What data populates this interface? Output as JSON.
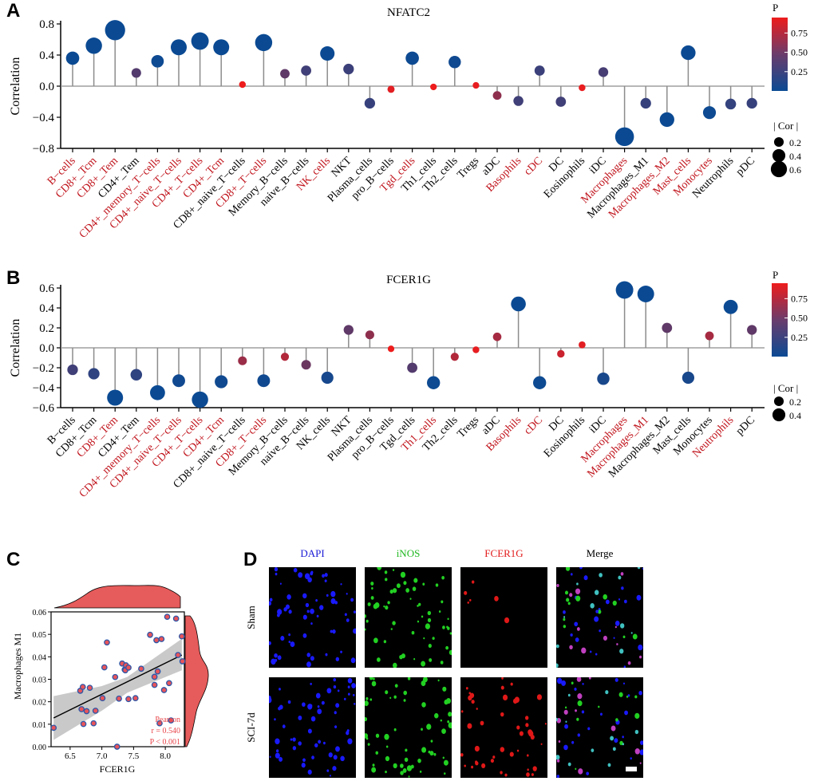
{
  "panels": {
    "a": {
      "letter": "A"
    },
    "b": {
      "letter": "B"
    },
    "c": {
      "letter": "C"
    },
    "d": {
      "letter": "D"
    }
  },
  "colors": {
    "p_low": "#0b4a93",
    "p_high": "#ee1c1c",
    "label_significant": "#c0131b",
    "label_normal": "#000000",
    "stem": "#8c8c8c",
    "density_fill": "#e65b5b",
    "ci_band": "#bfbfbf",
    "point_fill": "#e8545a",
    "point_edge": "#2d57a8",
    "annotation": "#e8454a",
    "dapi": "#1a1ad6",
    "inos": "#1fb81f",
    "fcer1g": "#e31a1a"
  },
  "chart_data": [
    {
      "id": "A",
      "type": "lollipop",
      "title": "NFATC2",
      "xlabel": "",
      "ylabel": "Correlation",
      "ylim": [
        -0.8,
        0.8
      ],
      "yticks": [
        "0.8",
        "0.4",
        "0.0",
        "−0.4",
        "−0.8"
      ],
      "ytick_values": [
        0.8,
        0.4,
        0.0,
        -0.4,
        -0.8
      ],
      "color_legend": {
        "title": "P",
        "ticks": [
          "0.75",
          "0.50",
          "0.25"
        ],
        "tick_values": [
          0.75,
          0.5,
          0.25
        ]
      },
      "size_legend": {
        "title": "| Cor |",
        "labels": [
          "0.2",
          "0.4",
          "0.6"
        ],
        "values": [
          0.2,
          0.4,
          0.6
        ]
      },
      "categories": [
        "B−cells",
        "CD8+_Tcm",
        "CD8+_Tem",
        "CD4+_Tem",
        "CD4+_memory_T−cells",
        "CD4+_naive_T−cells",
        "CD4+_T−cells",
        "CD4+_Tcm",
        "CD8+_naive_T−cells",
        "CD8+_T−cells",
        "Memory_B−cells",
        "naive_B−cells",
        "NK_cells",
        "NKT",
        "Plasma_cells",
        "pro_B−cells",
        "Tgd_cells",
        "Th1_cells",
        "Th2_cells",
        "Tregs",
        "aDC",
        "Basophils",
        "cDC",
        "DC",
        "Eosinophils",
        "iDC",
        "Macrophages",
        "Macrophages_M1",
        "Macrophages_M2",
        "Mast_cells",
        "Monocytes",
        "Neutrophils",
        "pDC"
      ],
      "values": [
        0.36,
        0.52,
        0.72,
        0.17,
        0.32,
        0.5,
        0.58,
        0.5,
        0.02,
        0.56,
        0.16,
        0.2,
        0.42,
        0.22,
        -0.22,
        -0.04,
        0.36,
        -0.01,
        0.31,
        0.01,
        -0.12,
        -0.19,
        0.2,
        -0.2,
        -0.02,
        0.18,
        -0.65,
        -0.22,
        -0.43,
        0.43,
        -0.34,
        -0.23,
        -0.22
      ],
      "pvalues": [
        0.001,
        0.001,
        0.001,
        0.3,
        0.01,
        0.001,
        0.001,
        0.001,
        0.95,
        0.001,
        0.35,
        0.22,
        0.001,
        0.2,
        0.18,
        0.9,
        0.01,
        0.95,
        0.02,
        0.92,
        0.55,
        0.22,
        0.2,
        0.22,
        0.93,
        0.25,
        0.001,
        0.18,
        0.001,
        0.001,
        0.01,
        0.17,
        0.18
      ],
      "significant": [
        true,
        true,
        true,
        false,
        true,
        true,
        true,
        true,
        false,
        true,
        false,
        false,
        true,
        false,
        false,
        false,
        true,
        false,
        false,
        false,
        false,
        true,
        true,
        false,
        false,
        false,
        true,
        false,
        true,
        true,
        true,
        false,
        false
      ]
    },
    {
      "id": "B",
      "type": "lollipop",
      "title": "FCER1G",
      "xlabel": "",
      "ylabel": "Correlation",
      "ylim": [
        -0.6,
        0.6
      ],
      "yticks": [
        "0.6",
        "0.4",
        "0.2",
        "0.0",
        "−0.2",
        "−0.4",
        "−0.6"
      ],
      "ytick_values": [
        0.6,
        0.4,
        0.2,
        0.0,
        -0.2,
        -0.4,
        -0.6
      ],
      "color_legend": {
        "title": "P",
        "ticks": [
          "0.75",
          "0.50",
          "0.25"
        ],
        "tick_values": [
          0.75,
          0.5,
          0.25
        ]
      },
      "size_legend": {
        "title": "| Cor |",
        "labels": [
          "0.2",
          "0.4"
        ],
        "values": [
          0.2,
          0.4
        ]
      },
      "categories": [
        "B−cells",
        "CD8+_Tcm",
        "CD8+_Tem",
        "CD4+_Tem",
        "CD4+_memory_T−cells",
        "CD4+_naive_T−cells",
        "CD4+_T−cells",
        "CD4+_Tcm",
        "CD8+_naive_T−cells",
        "CD8+_T−cells",
        "Memory_B−cells",
        "naive_B−cells",
        "NK_cells",
        "NKT",
        "Plasma_cells",
        "pro_B−cells",
        "Tgd_cells",
        "Th1_cells",
        "Th2_cells",
        "Tregs",
        "aDC",
        "Basophils",
        "cDC",
        "DC",
        "Eosinophils",
        "iDC",
        "Macrophages",
        "Macrophages_M1",
        "Macrophages_M2",
        "Mast_cells",
        "Monocytes",
        "Neutrophils",
        "pDC"
      ],
      "values": [
        -0.22,
        -0.26,
        -0.5,
        -0.27,
        -0.45,
        -0.33,
        -0.52,
        -0.34,
        -0.13,
        -0.33,
        -0.09,
        -0.17,
        -0.3,
        0.18,
        0.13,
        -0.01,
        -0.2,
        -0.35,
        -0.09,
        -0.02,
        0.11,
        0.44,
        -0.35,
        -0.06,
        0.03,
        -0.31,
        0.58,
        0.54,
        0.2,
        -0.3,
        0.12,
        0.41,
        0.18
      ],
      "pvalues": [
        0.22,
        0.15,
        0.001,
        0.15,
        0.001,
        0.02,
        0.001,
        0.02,
        0.6,
        0.02,
        0.7,
        0.4,
        0.05,
        0.35,
        0.55,
        0.95,
        0.3,
        0.01,
        0.7,
        0.92,
        0.65,
        0.001,
        0.01,
        0.8,
        0.9,
        0.06,
        0.001,
        0.001,
        0.35,
        0.06,
        0.65,
        0.001,
        0.35
      ],
      "significant": [
        false,
        false,
        true,
        false,
        true,
        true,
        true,
        true,
        false,
        true,
        false,
        false,
        false,
        false,
        false,
        false,
        false,
        true,
        false,
        false,
        false,
        true,
        true,
        false,
        false,
        false,
        true,
        true,
        false,
        false,
        false,
        true,
        false
      ]
    },
    {
      "id": "C",
      "type": "scatter",
      "title": "",
      "xlabel": "FCER1G",
      "ylabel": "Macrophages M1",
      "xlim": [
        6.2,
        8.3
      ],
      "ylim": [
        0.0,
        0.06
      ],
      "xticks": [
        "6.5",
        "7.0",
        "7.5",
        "8.0"
      ],
      "xtick_values": [
        6.5,
        7.0,
        7.5,
        8.0
      ],
      "yticks": [
        "0.06",
        "0.05",
        "0.04",
        "0.03",
        "0.02",
        "0.01",
        "0.00"
      ],
      "ytick_values": [
        0.06,
        0.05,
        0.04,
        0.03,
        0.02,
        0.01,
        0.0
      ],
      "annotation": [
        "Pearson",
        "r = 0.540",
        "P < 0.001"
      ],
      "fit_line": {
        "x": [
          6.24,
          8.26
        ],
        "y": [
          0.0128,
          0.0408
        ]
      },
      "ci_band": {
        "x": [
          6.24,
          7.0,
          7.4,
          8.26
        ],
        "lower": [
          0.003,
          0.016,
          0.024,
          0.034
        ],
        "upper": [
          0.0225,
          0.027,
          0.031,
          0.048
        ]
      },
      "x": [
        6.24,
        6.66,
        6.68,
        6.7,
        6.71,
        6.76,
        6.81,
        6.87,
        6.9,
        7.01,
        7.04,
        7.08,
        7.21,
        7.24,
        7.27,
        7.32,
        7.36,
        7.37,
        7.38,
        7.42,
        7.42,
        7.53,
        7.62,
        7.76,
        7.83,
        7.83,
        7.86,
        7.88,
        7.91,
        7.94,
        7.98,
        8.03,
        8.06,
        8.09,
        8.17,
        8.2,
        8.26,
        8.27
      ],
      "y": [
        0.0084,
        0.0249,
        0.0167,
        0.0266,
        0.0101,
        0.0158,
        0.0262,
        0.0104,
        0.016,
        0.0216,
        0.0353,
        0.0464,
        0.031,
        0.0,
        0.0214,
        0.037,
        0.0343,
        0.034,
        0.0362,
        0.0352,
        0.0212,
        0.0216,
        0.0347,
        0.0498,
        0.0311,
        0.0275,
        0.0474,
        0.0335,
        0.0104,
        0.0479,
        0.0252,
        0.0578,
        0.0283,
        0.0117,
        0.057,
        0.0408,
        0.0491,
        0.038
      ]
    }
  ],
  "microscopy": {
    "columns": [
      {
        "label": "DAPI",
        "channel": "dapi"
      },
      {
        "label": "iNOS",
        "channel": "inos"
      },
      {
        "label": "FCER1G",
        "channel": "fcer1g"
      },
      {
        "label": "Merge",
        "channel": "merge"
      }
    ],
    "rows": [
      {
        "label": "Sham"
      },
      {
        "label": "SCI-7d"
      }
    ]
  }
}
